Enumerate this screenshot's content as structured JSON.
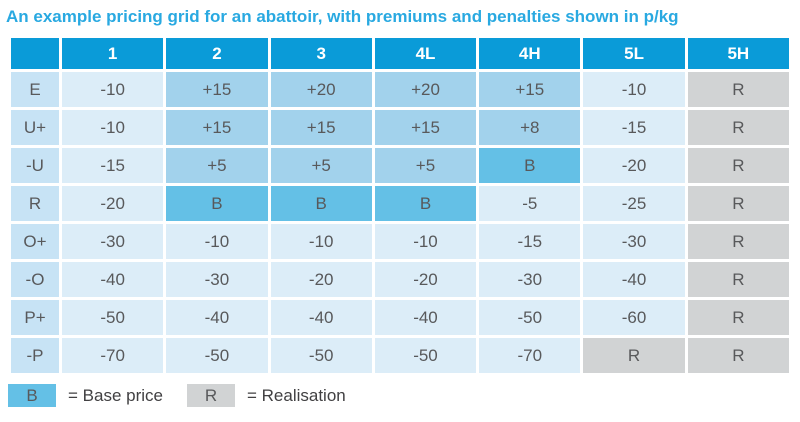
{
  "chart_data": {
    "type": "table",
    "title": "An example pricing grid for an abattoir, with premiums and penalties shown in p/kg",
    "unit": "p/kg",
    "columns": [
      "",
      "1",
      "2",
      "3",
      "4L",
      "4H",
      "5L",
      "5H"
    ],
    "rows": [
      {
        "label": "E",
        "cells": [
          {
            "v": "-10",
            "t": "light"
          },
          {
            "v": "+15",
            "t": "premium"
          },
          {
            "v": "+20",
            "t": "premium"
          },
          {
            "v": "+20",
            "t": "premium"
          },
          {
            "v": "+15",
            "t": "premium"
          },
          {
            "v": "-10",
            "t": "light"
          },
          {
            "v": "R",
            "t": "real"
          }
        ]
      },
      {
        "label": "U+",
        "cells": [
          {
            "v": "-10",
            "t": "light"
          },
          {
            "v": "+15",
            "t": "premium"
          },
          {
            "v": "+15",
            "t": "premium"
          },
          {
            "v": "+15",
            "t": "premium"
          },
          {
            "v": "+8",
            "t": "premium"
          },
          {
            "v": "-15",
            "t": "light"
          },
          {
            "v": "R",
            "t": "real"
          }
        ]
      },
      {
        "label": "-U",
        "cells": [
          {
            "v": "-15",
            "t": "light"
          },
          {
            "v": "+5",
            "t": "premium"
          },
          {
            "v": "+5",
            "t": "premium"
          },
          {
            "v": "+5",
            "t": "premium"
          },
          {
            "v": "B",
            "t": "base"
          },
          {
            "v": "-20",
            "t": "light"
          },
          {
            "v": "R",
            "t": "real"
          }
        ]
      },
      {
        "label": "R",
        "cells": [
          {
            "v": "-20",
            "t": "light"
          },
          {
            "v": "B",
            "t": "base"
          },
          {
            "v": "B",
            "t": "base"
          },
          {
            "v": "B",
            "t": "base"
          },
          {
            "v": "-5",
            "t": "light"
          },
          {
            "v": "-25",
            "t": "light"
          },
          {
            "v": "R",
            "t": "real"
          }
        ]
      },
      {
        "label": "O+",
        "cells": [
          {
            "v": "-30",
            "t": "light"
          },
          {
            "v": "-10",
            "t": "light"
          },
          {
            "v": "-10",
            "t": "light"
          },
          {
            "v": "-10",
            "t": "light"
          },
          {
            "v": "-15",
            "t": "light"
          },
          {
            "v": "-30",
            "t": "light"
          },
          {
            "v": "R",
            "t": "real"
          }
        ]
      },
      {
        "label": "-O",
        "cells": [
          {
            "v": "-40",
            "t": "light"
          },
          {
            "v": "-30",
            "t": "light"
          },
          {
            "v": "-20",
            "t": "light"
          },
          {
            "v": "-20",
            "t": "light"
          },
          {
            "v": "-30",
            "t": "light"
          },
          {
            "v": "-40",
            "t": "light"
          },
          {
            "v": "R",
            "t": "real"
          }
        ]
      },
      {
        "label": "P+",
        "cells": [
          {
            "v": "-50",
            "t": "light"
          },
          {
            "v": "-40",
            "t": "light"
          },
          {
            "v": "-40",
            "t": "light"
          },
          {
            "v": "-40",
            "t": "light"
          },
          {
            "v": "-50",
            "t": "light"
          },
          {
            "v": "-60",
            "t": "light"
          },
          {
            "v": "R",
            "t": "real"
          }
        ]
      },
      {
        "label": "-P",
        "cells": [
          {
            "v": "-70",
            "t": "light"
          },
          {
            "v": "-50",
            "t": "light"
          },
          {
            "v": "-50",
            "t": "light"
          },
          {
            "v": "-50",
            "t": "light"
          },
          {
            "v": "-70",
            "t": "light"
          },
          {
            "v": "R",
            "t": "real"
          },
          {
            "v": "R",
            "t": "real"
          }
        ]
      }
    ],
    "legend": [
      {
        "symbol": "B",
        "type": "base",
        "label": "= Base price"
      },
      {
        "symbol": "R",
        "type": "real",
        "label": "= Realisation"
      }
    ]
  },
  "colors": {
    "title_text": "#29A9E1",
    "header_bg": "#0A9BD8",
    "row_label_bg": "#C7E3F5",
    "cell_light": "#DCEDF8",
    "cell_premium": "#A2D2EC",
    "cell_base": "#64C0E6",
    "cell_real": "#D1D3D4",
    "cell_text": "#58595B",
    "legend_text": "#414042"
  }
}
